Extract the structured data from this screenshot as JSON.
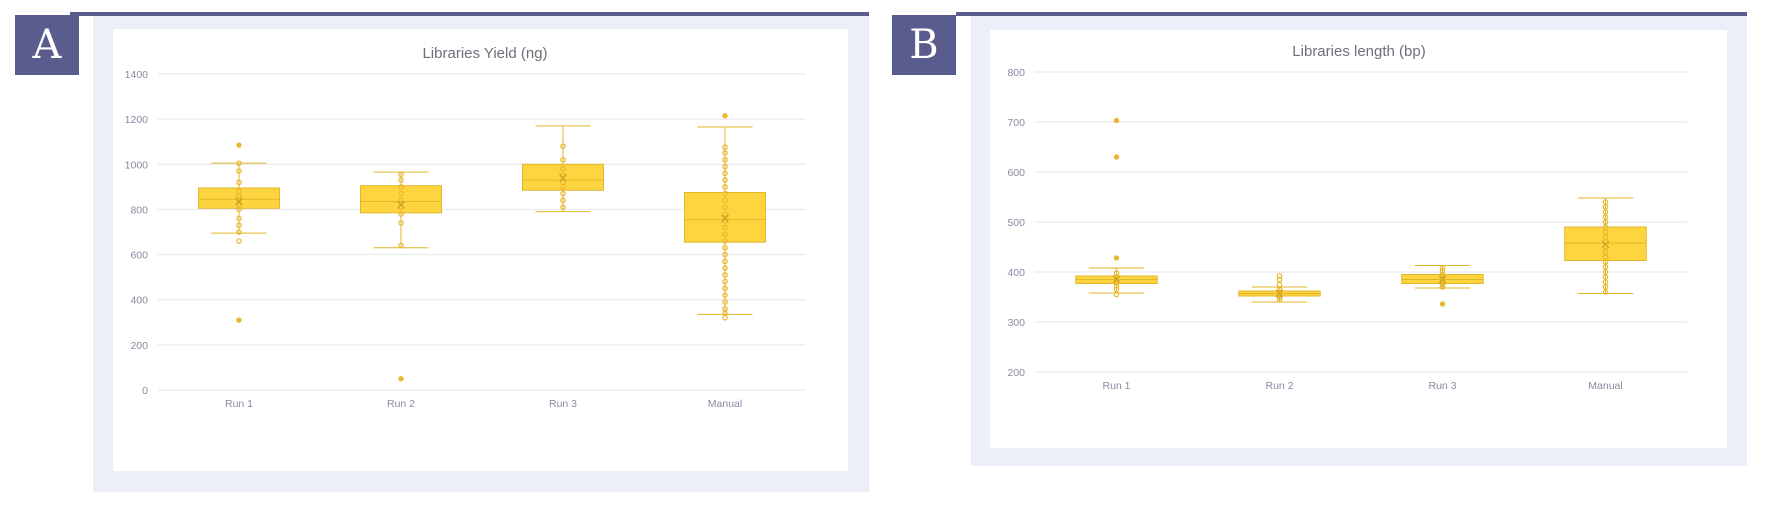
{
  "panels": [
    {
      "letter": "A",
      "letter_color": "#5a5c8e"
    },
    {
      "letter": "B",
      "letter_color": "#5a5c8e"
    }
  ],
  "colors": {
    "box_fill": "#ffd53f",
    "box_stroke": "#e0b62a",
    "point": "#e8b72c",
    "grid": "#e6e6ec"
  },
  "chart_data": [
    {
      "type": "box",
      "title": "Libraries Yield (ng)",
      "xlabel": "",
      "ylabel": "",
      "ylim": [
        0,
        1400
      ],
      "yticks": [
        "0",
        "200",
        "400",
        "600",
        "800",
        "1000",
        "1200",
        "1400"
      ],
      "categories": [
        "Run 1",
        "Run 2",
        "Run 3",
        "Manual"
      ],
      "boxes": [
        {
          "category": "Run 1",
          "min": 695,
          "q1": 805,
          "median": 845,
          "q3": 895,
          "max": 1005,
          "mean": 835,
          "points": [
            660,
            700,
            730,
            760,
            800,
            820,
            840,
            860,
            880,
            920,
            970,
            1005
          ],
          "outliers": [
            310,
            1085
          ]
        },
        {
          "category": "Run 2",
          "min": 630,
          "q1": 785,
          "median": 835,
          "q3": 905,
          "max": 965,
          "mean": 820,
          "points": [
            640,
            740,
            780,
            810,
            840,
            870,
            900,
            930,
            955
          ],
          "outliers": [
            50
          ]
        },
        {
          "category": "Run 3",
          "min": 790,
          "q1": 885,
          "median": 930,
          "q3": 1000,
          "max": 1170,
          "mean": 940,
          "points": [
            810,
            840,
            870,
            900,
            920,
            950,
            980,
            1020,
            1080
          ],
          "outliers": []
        },
        {
          "category": "Manual",
          "min": 335,
          "q1": 655,
          "median": 755,
          "q3": 875,
          "max": 1165,
          "mean": 760,
          "points": [
            320,
            340,
            360,
            390,
            420,
            450,
            480,
            510,
            540,
            570,
            600,
            630,
            660,
            690,
            720,
            750,
            780,
            810,
            840,
            870,
            900,
            930,
            960,
            990,
            1020,
            1050,
            1075
          ],
          "outliers": [
            1215
          ]
        }
      ]
    },
    {
      "type": "box",
      "title": "Libraries length (bp)",
      "xlabel": "",
      "ylabel": "",
      "ylim": [
        200,
        800
      ],
      "yticks": [
        "200",
        "300",
        "400",
        "500",
        "600",
        "700",
        "800"
      ],
      "categories": [
        "Run 1",
        "Run 2",
        "Run 3",
        "Manual"
      ],
      "boxes": [
        {
          "category": "Run 1",
          "min": 358,
          "q1": 377,
          "median": 385,
          "q3": 392,
          "max": 408,
          "mean": 386,
          "points": [
            355,
            365,
            372,
            378,
            384,
            390,
            398
          ],
          "outliers": [
            428,
            630,
            703
          ]
        },
        {
          "category": "Run 2",
          "min": 340,
          "q1": 352,
          "median": 357,
          "q3": 362,
          "max": 370,
          "mean": 357,
          "points": [
            345,
            350,
            355,
            360,
            365,
            375,
            385,
            392
          ],
          "outliers": []
        },
        {
          "category": "Run 3",
          "min": 368,
          "q1": 377,
          "median": 385,
          "q3": 395,
          "max": 413,
          "mean": 385,
          "points": [
            370,
            375,
            380,
            385,
            390,
            395,
            402,
            408
          ],
          "outliers": [
            336
          ]
        },
        {
          "category": "Manual",
          "min": 357,
          "q1": 423,
          "median": 458,
          "q3": 490,
          "max": 548,
          "mean": 455,
          "points": [
            360,
            370,
            380,
            390,
            400,
            410,
            420,
            430,
            440,
            450,
            460,
            470,
            480,
            490,
            500,
            510,
            520,
            530,
            540
          ],
          "outliers": []
        }
      ]
    }
  ]
}
